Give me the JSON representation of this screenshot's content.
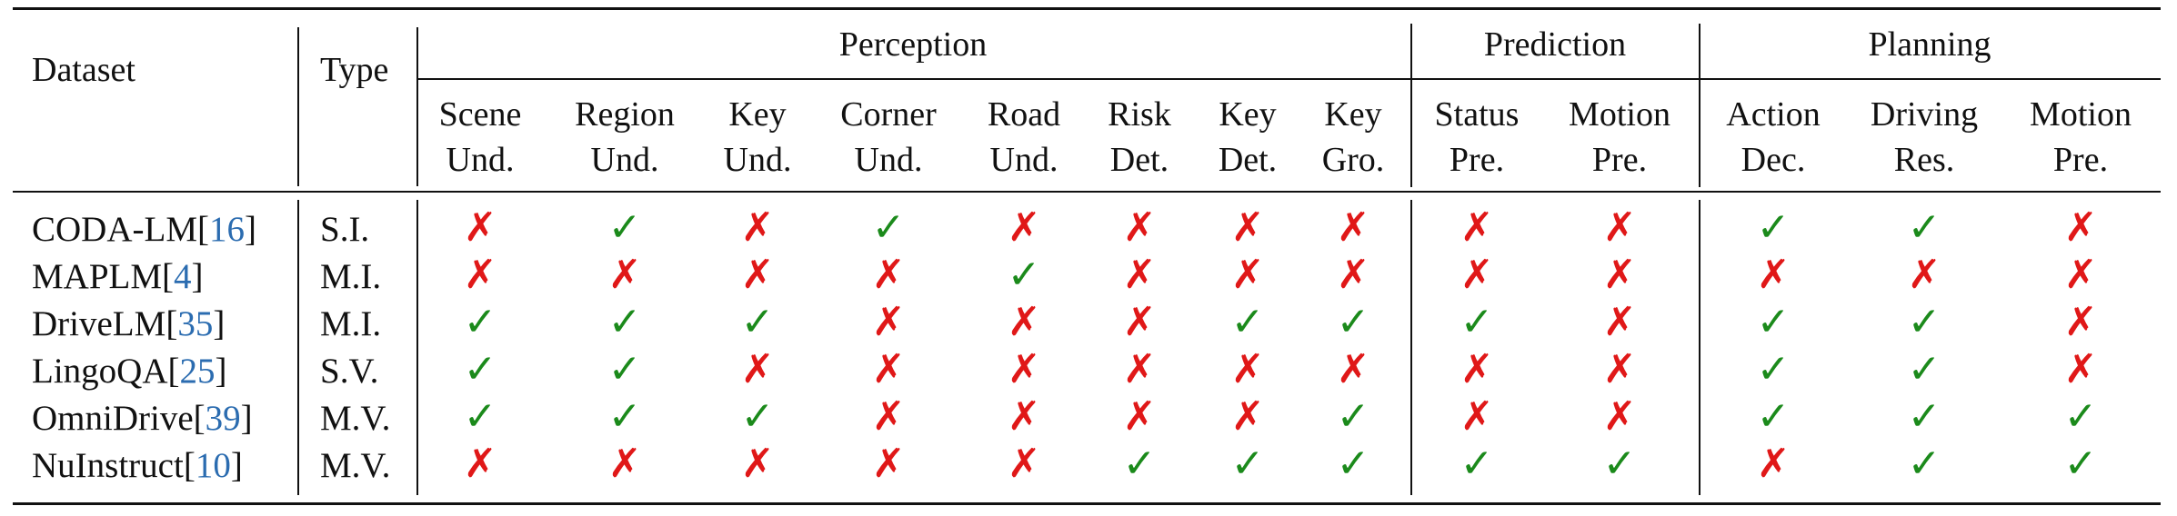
{
  "header": {
    "dataset_label": "Dataset",
    "type_label": "Type",
    "groups": [
      {
        "label": "Perception",
        "columns": [
          {
            "line1": "Scene",
            "line2": "Und."
          },
          {
            "line1": "Region",
            "line2": "Und."
          },
          {
            "line1": "Key",
            "line2": "Und."
          },
          {
            "line1": "Corner",
            "line2": "Und."
          },
          {
            "line1": "Road",
            "line2": "Und."
          },
          {
            "line1": "Risk",
            "line2": "Det."
          },
          {
            "line1": "Key",
            "line2": "Det."
          },
          {
            "line1": "Key",
            "line2": "Gro."
          }
        ]
      },
      {
        "label": "Prediction",
        "columns": [
          {
            "line1": "Status",
            "line2": "Pre."
          },
          {
            "line1": "Motion",
            "line2": "Pre."
          }
        ]
      },
      {
        "label": "Planning",
        "columns": [
          {
            "line1": "Action",
            "line2": "Dec."
          },
          {
            "line1": "Driving",
            "line2": "Res."
          },
          {
            "line1": "Motion",
            "line2": "Pre."
          }
        ]
      }
    ]
  },
  "symbols": {
    "yes": "✓",
    "no": "✗"
  },
  "colors": {
    "yes": "#1b8a1b",
    "no": "#e01818",
    "citation": "#2b6cb0"
  },
  "rows": [
    {
      "name": "CODA-LM",
      "cite": "16",
      "type": "S.I.",
      "marks": [
        0,
        1,
        0,
        1,
        0,
        0,
        0,
        0,
        0,
        0,
        1,
        1,
        0
      ]
    },
    {
      "name": "MAPLM",
      "cite": "4",
      "type": "M.I.",
      "marks": [
        0,
        0,
        0,
        0,
        1,
        0,
        0,
        0,
        0,
        0,
        0,
        0,
        0
      ]
    },
    {
      "name": "DriveLM",
      "cite": "35",
      "type": "M.I.",
      "marks": [
        1,
        1,
        1,
        0,
        0,
        0,
        1,
        1,
        1,
        0,
        1,
        1,
        0
      ]
    },
    {
      "name": "LingoQA",
      "cite": "25",
      "type": "S.V.",
      "marks": [
        1,
        1,
        0,
        0,
        0,
        0,
        0,
        0,
        0,
        0,
        1,
        1,
        0
      ]
    },
    {
      "name": "OmniDrive",
      "cite": "39",
      "type": "M.V.",
      "marks": [
        1,
        1,
        1,
        0,
        0,
        0,
        0,
        1,
        0,
        0,
        1,
        1,
        1
      ]
    },
    {
      "name": "NuInstruct",
      "cite": "10",
      "type": "M.V.",
      "marks": [
        0,
        0,
        0,
        0,
        0,
        1,
        1,
        1,
        1,
        1,
        0,
        1,
        1
      ]
    }
  ]
}
